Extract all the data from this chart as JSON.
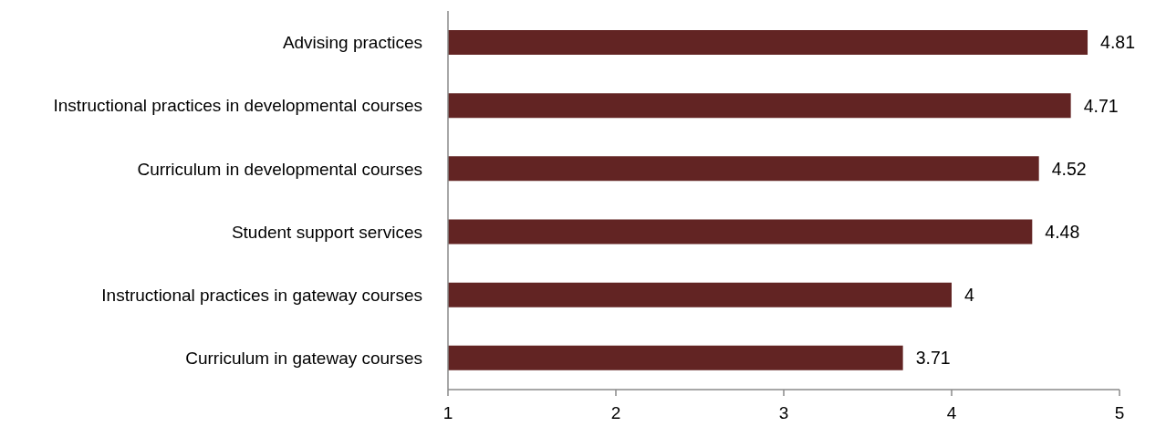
{
  "chart_data": {
    "type": "bar",
    "orientation": "horizontal",
    "categories": [
      "Advising practices",
      "Instructional practices in developmental courses",
      "Curriculum in developmental courses",
      "Student support services",
      "Instructional practices in gateway courses",
      "Curriculum in gateway courses"
    ],
    "values": [
      4.81,
      4.71,
      4.52,
      4.48,
      4,
      3.71
    ],
    "color": "#622423",
    "xlim": [
      1,
      5
    ],
    "xticks": [
      1,
      2,
      3,
      4,
      5
    ],
    "data_labels": true
  }
}
